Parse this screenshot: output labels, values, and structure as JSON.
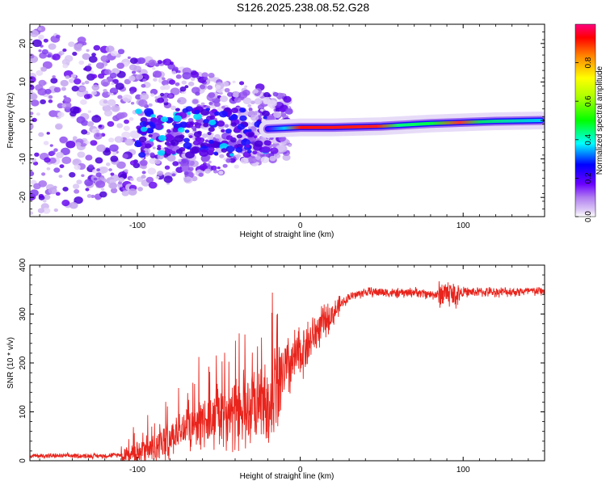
{
  "title": "S126.2025.238.08.52.G28",
  "chart_data": [
    {
      "type": "heatmap",
      "xlabel": "Height of straight line (km)",
      "ylabel": "Frequency (Hz)",
      "xlim": [
        -166,
        150
      ],
      "ylim": [
        -25,
        25
      ],
      "xticks": [
        -100,
        0,
        100
      ],
      "yticks": [
        -20,
        -10,
        0,
        10,
        20
      ],
      "line_track": [
        {
          "x": -20,
          "y": -2.2
        },
        {
          "x": 0,
          "y": -1.8
        },
        {
          "x": 20,
          "y": -1.8
        },
        {
          "x": 50,
          "y": -1.5
        },
        {
          "x": 80,
          "y": -0.8
        },
        {
          "x": 100,
          "y": -0.5
        },
        {
          "x": 120,
          "y": -0.2
        },
        {
          "x": 148,
          "y": 0.0
        }
      ],
      "colorbar": {
        "label": "Normalized spectral amplitude",
        "ticks": [
          "0.0",
          "0.2",
          "0.4",
          "0.6",
          "0.8"
        ],
        "tick_values": [
          0.0,
          0.2,
          0.4,
          0.6,
          0.8
        ],
        "range": [
          0,
          1
        ]
      }
    },
    {
      "type": "line",
      "xlabel": "Height of straight line (km)",
      "ylabel": "SNR (10 * v/v)",
      "xlim": [
        -166,
        150
      ],
      "ylim": [
        0,
        400
      ],
      "xticks": [
        -100,
        0,
        100
      ],
      "yticks": [
        0,
        100,
        200,
        300,
        400
      ],
      "series": [
        {
          "name": "SNR",
          "color": "#e8241c",
          "x": [
            -166,
            -120,
            -100,
            -90,
            -80,
            -70,
            -60,
            -50,
            -40,
            -30,
            -20,
            -15,
            -10,
            -5,
            0,
            5,
            10,
            15,
            20,
            25,
            30,
            40,
            50,
            60,
            70,
            80,
            85,
            90,
            95,
            100,
            120,
            150
          ],
          "y": [
            10,
            10,
            15,
            22,
            45,
            70,
            80,
            90,
            95,
            100,
            110,
            150,
            180,
            200,
            220,
            240,
            265,
            285,
            300,
            320,
            335,
            345,
            345,
            342,
            345,
            340,
            340,
            345,
            338,
            345,
            345,
            347
          ]
        }
      ]
    }
  ]
}
